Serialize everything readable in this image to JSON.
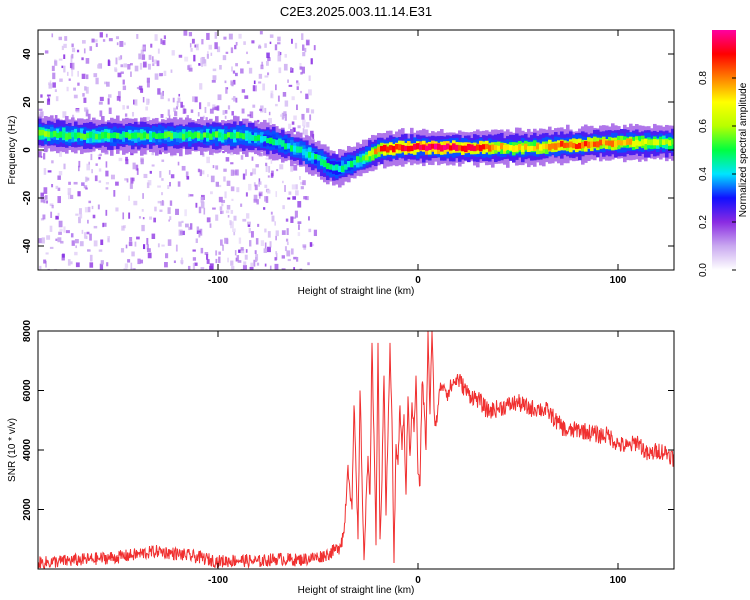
{
  "title": "C2E3.2025.003.11.14.E31",
  "chart_data": [
    {
      "type": "heatmap",
      "xlabel": "Height of straight line (km)",
      "ylabel": "Frequency (Hz)",
      "xlim": [
        -190,
        128
      ],
      "ylim": [
        -50,
        50
      ],
      "x_ticks": [
        -100,
        0,
        100
      ],
      "y_ticks": [
        -40,
        -20,
        0,
        20,
        40
      ],
      "colorbar": {
        "label": "Normalized spectral amplitude",
        "range": [
          0,
          1
        ],
        "ticks": [
          "0.0",
          "0.2",
          "0.4",
          "0.6",
          "0.8"
        ],
        "colormap": "rainbow",
        "colors": [
          "#ffffff",
          "#c9a8f0",
          "#8a2be2",
          "#1010ff",
          "#00e5ff",
          "#00ff40",
          "#b8ff00",
          "#ffff00",
          "#ff8000",
          "#ff0000",
          "#ff00a0"
        ]
      },
      "ridge": {
        "x": [
          -190,
          -175,
          -160,
          -145,
          -130,
          -115,
          -100,
          -90,
          -80,
          -70,
          -60,
          -50,
          -45,
          -40,
          -35,
          -30,
          -25,
          -20,
          -10,
          0,
          10,
          20,
          30,
          40,
          50,
          60,
          70,
          80,
          90,
          100,
          110,
          120,
          128
        ],
        "y": [
          7,
          6,
          6,
          6,
          6,
          6,
          6,
          6,
          5,
          3,
          0,
          -4,
          -7,
          -8,
          -6,
          -4,
          -2,
          0,
          1,
          1,
          1,
          1,
          1,
          1,
          1,
          1,
          2,
          2,
          3,
          3,
          3,
          3,
          3
        ],
        "amplitude": [
          0.55,
          0.5,
          0.5,
          0.5,
          0.5,
          0.5,
          0.5,
          0.5,
          0.45,
          0.45,
          0.45,
          0.45,
          0.45,
          0.45,
          0.45,
          0.5,
          0.6,
          0.85,
          0.9,
          0.95,
          0.95,
          0.9,
          0.9,
          0.75,
          0.7,
          0.75,
          0.85,
          0.85,
          0.8,
          0.75,
          0.7,
          0.6,
          0.6
        ]
      },
      "noise_region_x": [
        -190,
        -52
      ]
    },
    {
      "type": "line",
      "xlabel": "Height of straight line (km)",
      "ylabel": "SNR (10 * v/v)",
      "xlim": [
        -190,
        128
      ],
      "ylim": [
        0,
        8000
      ],
      "x_ticks": [
        -100,
        0,
        100
      ],
      "y_ticks": [
        2000,
        4000,
        6000,
        8000
      ],
      "line_color": "#f03030",
      "series": [
        {
          "x": [
            -190,
            -170,
            -160,
            -150,
            -140,
            -130,
            -120,
            -110,
            -100,
            -90,
            -80,
            -70,
            -60,
            -50,
            -45,
            -40,
            -37,
            -35,
            -33,
            -32,
            -30,
            -29,
            -27,
            -25,
            -24,
            -23,
            -22,
            -21,
            -20,
            -19,
            -18,
            -17,
            -16,
            -15,
            -14,
            -13,
            -12,
            -11,
            -10,
            -9,
            -8,
            -7,
            -6,
            -5,
            -4,
            -3,
            -2,
            -1,
            0,
            1,
            2,
            3,
            4,
            5,
            6,
            7,
            8,
            9,
            10,
            11,
            12,
            13,
            15,
            17,
            20,
            25,
            30,
            35,
            40,
            45,
            50,
            55,
            60,
            65,
            70,
            75,
            80,
            85,
            90,
            95,
            100,
            105,
            110,
            115,
            120,
            125,
            128
          ],
          "y": [
            200,
            300,
            350,
            400,
            500,
            600,
            500,
            400,
            250,
            300,
            250,
            350,
            300,
            400,
            500,
            700,
            1200,
            3500,
            2000,
            5500,
            1000,
            6000,
            300,
            3800,
            2500,
            7600,
            4500,
            800,
            7600,
            1000,
            3000,
            6500,
            1800,
            4500,
            7600,
            5000,
            200,
            4200,
            3500,
            5500,
            4000,
            5200,
            2500,
            5800,
            3800,
            5600,
            4600,
            6500,
            3200,
            2800,
            6200,
            5600,
            4000,
            8000,
            5200,
            8000,
            5400,
            4800,
            5500,
            6000,
            6200,
            6200,
            5900,
            6200,
            6400,
            5900,
            5700,
            5300,
            5400,
            5500,
            5600,
            5400,
            5400,
            5300,
            4900,
            4600,
            4700,
            4600,
            4500,
            4500,
            4200,
            4100,
            4300,
            3800,
            4000,
            3900,
            3700
          ]
        }
      ]
    }
  ]
}
